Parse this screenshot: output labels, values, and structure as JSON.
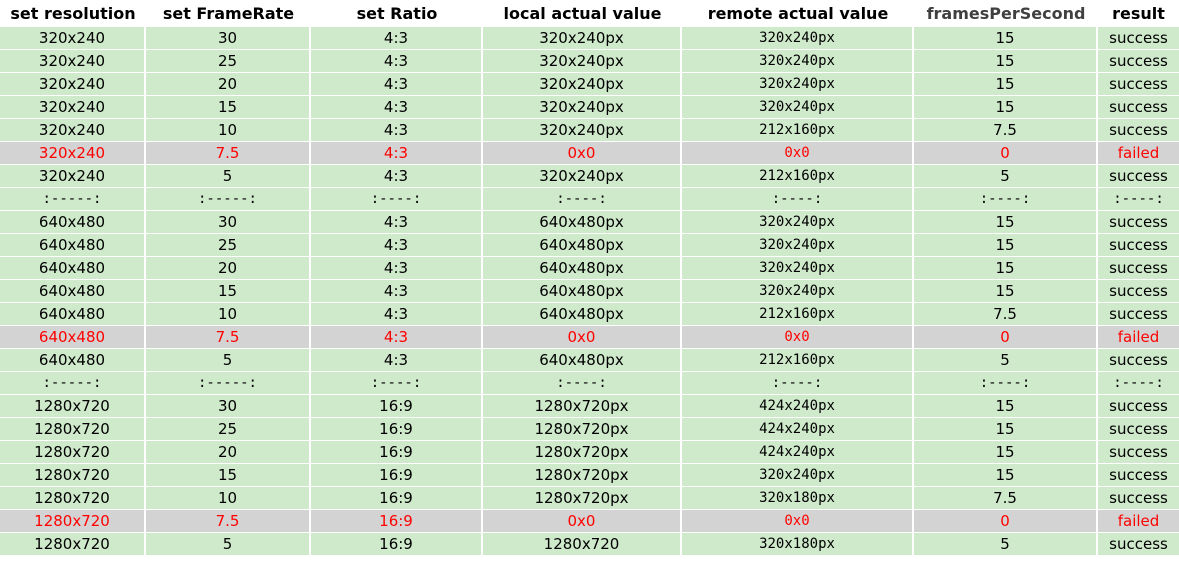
{
  "columns": [
    {
      "label": "set resolution",
      "muted": false
    },
    {
      "label": "set FrameRate",
      "muted": false
    },
    {
      "label": "set Ratio",
      "muted": false
    },
    {
      "label": "local actual value",
      "muted": false
    },
    {
      "label": "remote actual value",
      "muted": false
    },
    {
      "label": "framesPerSecond",
      "muted": true
    },
    {
      "label": "result",
      "muted": false
    }
  ],
  "colors": {
    "success_row_bg": "#cfe9cb",
    "failed_row_bg": "#d3d3d3",
    "failed_text": "#ff0000"
  },
  "rows": [
    {
      "status": "success",
      "cells": [
        "320x240",
        "30",
        "4:3",
        "320x240px",
        "320x240px",
        "15",
        "success"
      ]
    },
    {
      "status": "success",
      "cells": [
        "320x240",
        "25",
        "4:3",
        "320x240px",
        "320x240px",
        "15",
        "success"
      ]
    },
    {
      "status": "success",
      "cells": [
        "320x240",
        "20",
        "4:3",
        "320x240px",
        "320x240px",
        "15",
        "success"
      ]
    },
    {
      "status": "success",
      "cells": [
        "320x240",
        "15",
        "4:3",
        "320x240px",
        "320x240px",
        "15",
        "success"
      ]
    },
    {
      "status": "success",
      "cells": [
        "320x240",
        "10",
        "4:3",
        "320x240px",
        "212x160px",
        "7.5",
        "success"
      ]
    },
    {
      "status": "failed",
      "cells": [
        "320x240",
        "7.5",
        "4:3",
        "0x0",
        "0x0",
        "0",
        "failed"
      ]
    },
    {
      "status": "success",
      "cells": [
        "320x240",
        "5",
        "4:3",
        "320x240px",
        "212x160px",
        "5",
        "success"
      ]
    },
    {
      "status": "sep",
      "cells": [
        ":-----:",
        ":-----:",
        ":----:",
        ":----:",
        ":----:",
        ":----:",
        ":----:"
      ]
    },
    {
      "status": "success",
      "cells": [
        "640x480",
        "30",
        "4:3",
        "640x480px",
        "320x240px",
        "15",
        "success"
      ]
    },
    {
      "status": "success",
      "cells": [
        "640x480",
        "25",
        "4:3",
        "640x480px",
        "320x240px",
        "15",
        "success"
      ]
    },
    {
      "status": "success",
      "cells": [
        "640x480",
        "20",
        "4:3",
        "640x480px",
        "320x240px",
        "15",
        "success"
      ]
    },
    {
      "status": "success",
      "cells": [
        "640x480",
        "15",
        "4:3",
        "640x480px",
        "320x240px",
        "15",
        "success"
      ]
    },
    {
      "status": "success",
      "cells": [
        "640x480",
        "10",
        "4:3",
        "640x480px",
        "212x160px",
        "7.5",
        "success"
      ]
    },
    {
      "status": "failed",
      "cells": [
        "640x480",
        "7.5",
        "4:3",
        "0x0",
        "0x0",
        "0",
        "failed"
      ]
    },
    {
      "status": "success",
      "cells": [
        "640x480",
        "5",
        "4:3",
        "640x480px",
        "212x160px",
        "5",
        "success"
      ]
    },
    {
      "status": "sep",
      "cells": [
        ":-----:",
        ":-----:",
        ":----:",
        ":----:",
        ":----:",
        ":----:",
        ":----:"
      ]
    },
    {
      "status": "success",
      "cells": [
        "1280x720",
        "30",
        "16:9",
        "1280x720px",
        "424x240px",
        "15",
        "success"
      ]
    },
    {
      "status": "success",
      "cells": [
        "1280x720",
        "25",
        "16:9",
        "1280x720px",
        "424x240px",
        "15",
        "success"
      ]
    },
    {
      "status": "success",
      "cells": [
        "1280x720",
        "20",
        "16:9",
        "1280x720px",
        "424x240px",
        "15",
        "success"
      ]
    },
    {
      "status": "success",
      "cells": [
        "1280x720",
        "15",
        "16:9",
        "1280x720px",
        "320x240px",
        "15",
        "success"
      ]
    },
    {
      "status": "success",
      "cells": [
        "1280x720",
        "10",
        "16:9",
        "1280x720px",
        "320x180px",
        "7.5",
        "success"
      ]
    },
    {
      "status": "failed",
      "cells": [
        "1280x720",
        "7.5",
        "16:9",
        "0x0",
        "0x0",
        "0",
        "failed"
      ]
    },
    {
      "status": "success",
      "cells": [
        "1280x720",
        "5",
        "16:9",
        "1280x720",
        "320x180px",
        "5",
        "success"
      ]
    }
  ]
}
